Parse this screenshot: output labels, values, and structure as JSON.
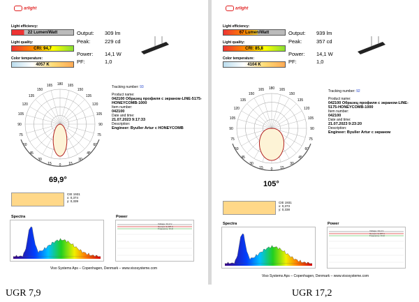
{
  "captions": {
    "left": "UGR 7,9",
    "right": "UGR 17,2"
  },
  "labels": {
    "light_efficiency": "Light efficiency:",
    "light_quality": "Light quality:",
    "color_temperature": "Color temperature:",
    "output": "Output:",
    "peak": "Peak:",
    "power": "Power:",
    "pf": "PF:",
    "tracking": "Tracking number:",
    "product_name": "Product name:",
    "item_number": "Item number:",
    "date_time": "Date and time:",
    "description": "Description:",
    "spectra": "Spectra",
    "power_chart": "Power",
    "logo": "arlight"
  },
  "polar_ticks": [
    "165",
    "180",
    "165",
    "150",
    "150",
    "135",
    "135",
    "120",
    "120",
    "105",
    "105",
    "90",
    "90",
    "75",
    "75",
    "60",
    "60",
    "45",
    "45",
    "30",
    "15",
    "0",
    "15",
    "30"
  ],
  "reports": [
    {
      "efficiency": "22 Lumen/Watt",
      "cri": "CRI: 94,7",
      "cct": "4057 K",
      "output": "309 lm",
      "peak": "229 cd",
      "power": "14,1 W",
      "pf": "1,0",
      "tracking": "93",
      "product": "042100 Образец профиля с экраном-LINE-5175-HONEYCOMB-1000",
      "item": "042100",
      "datetime": "21.07.2023  9:17:33",
      "description": "Engineer: Byuller Artur с HONEYCOMB",
      "beam_angle": "69,9°",
      "cie": "CIE 1931\nx: 0,374\ny: 0,339",
      "footer": "Viso Systems Aps – Copenhagen, Denmark – www.visosysteme.com",
      "power_legend": "Voltage: 34,4 V\nCurrent: 0,407 A\nFrequency: 0 Hz"
    },
    {
      "efficiency": "67 Lumen/Watt",
      "cri": "CRI: 85,8",
      "cct": "4104 K",
      "output": "939 lm",
      "peak": "357 cd",
      "power": "14,1 W",
      "pf": "1,0",
      "tracking": "92",
      "product": "042100 Образец профиля с экраном-LINE-5175-HONEYCOMB-1000",
      "item": "042100",
      "datetime": "21.07.2023  9:23:20",
      "description": "Engineer: Byuller Artur с экраном",
      "beam_angle": "105°",
      "cie": "CIE 1931\nx: 0,373\ny: 0,338",
      "footer": "Viso Systems Aps – Copenhagen, Denmark – www.visosysteme.com",
      "power_legend": "Voltage: 34,4 V\nCurrent: 0,407 A\nFrequency: 0 Hz"
    }
  ],
  "colors": {
    "accent_red": "#e02020",
    "cie_fill": "#ffd889",
    "curve": "#b22222"
  }
}
